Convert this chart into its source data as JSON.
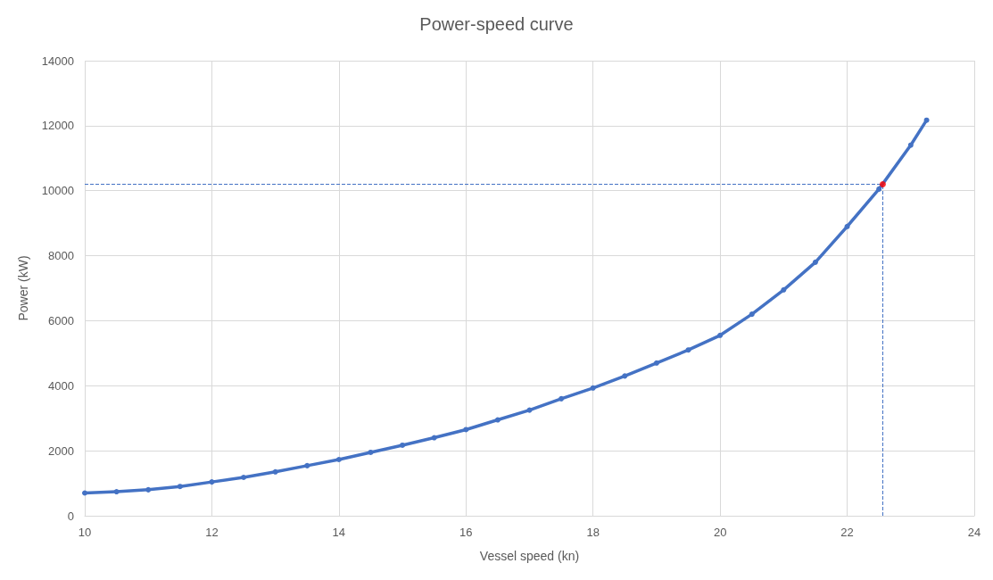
{
  "chart_data": {
    "type": "line",
    "title": "Power-speed curve",
    "xlabel": "Vessel speed (kn)",
    "ylabel": "Power (kW)",
    "xlim": [
      10,
      24
    ],
    "xticks": [
      10,
      12,
      14,
      16,
      18,
      20,
      22,
      24
    ],
    "ylim": [
      0,
      14000
    ],
    "yticks": [
      0,
      2000,
      4000,
      6000,
      8000,
      10000,
      12000,
      14000
    ],
    "grid": true,
    "marker": "circle",
    "line_style": "solid",
    "series": [
      {
        "color": "#4472c4",
        "x": [
          10.0,
          10.5,
          11,
          11.5,
          12,
          12.5,
          13,
          13.5,
          14,
          14.5,
          15,
          15.5,
          16,
          16.5,
          17,
          17.5,
          18,
          18.5,
          19,
          19.5,
          20,
          20.5,
          21,
          21.5,
          22,
          22.5,
          23,
          23.25
        ],
        "values": [
          700,
          740,
          800,
          900,
          1040,
          1180,
          1350,
          1540,
          1730,
          1950,
          2170,
          2400,
          2650,
          2950,
          3250,
          3600,
          3930,
          4300,
          4700,
          5100,
          5550,
          6200,
          6950,
          7800,
          8900,
          10050,
          11400,
          12170
        ]
      },
      {
        "type": "scatter",
        "color": "#ff0000",
        "x": [
          22.56
        ],
        "values": [
          10200
        ]
      }
    ],
    "ref_lines": [
      {
        "axis": "y",
        "value": 10200,
        "color": "#4472c4",
        "line_style": "dashed"
      },
      {
        "axis": "x",
        "value": 22.56,
        "color": "#4472c4",
        "line_style": "dashed"
      }
    ]
  }
}
